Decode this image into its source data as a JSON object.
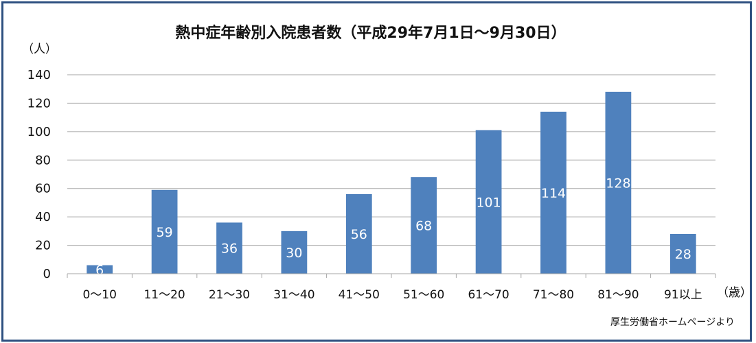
{
  "chart_data": {
    "type": "bar",
    "title": "熱中症年齢別入院患者数（平成29年7月1日～9月30日）",
    "ylabel": "（人）",
    "xlabel": "（歳）",
    "categories": [
      "0～10",
      "11～20",
      "21～30",
      "31～40",
      "41～50",
      "51～60",
      "61～70",
      "71～80",
      "81～90",
      "91以上"
    ],
    "values": [
      6,
      59,
      36,
      30,
      56,
      68,
      101,
      114,
      128,
      28
    ],
    "ylim": [
      0,
      140
    ],
    "yticks": [
      0,
      20,
      40,
      60,
      80,
      100,
      120,
      140
    ],
    "grid": true,
    "legend": "none",
    "bar_color": "#4f81bd",
    "data_label_color": "#ffffff"
  },
  "source_note": "厚生労働省ホームページより"
}
